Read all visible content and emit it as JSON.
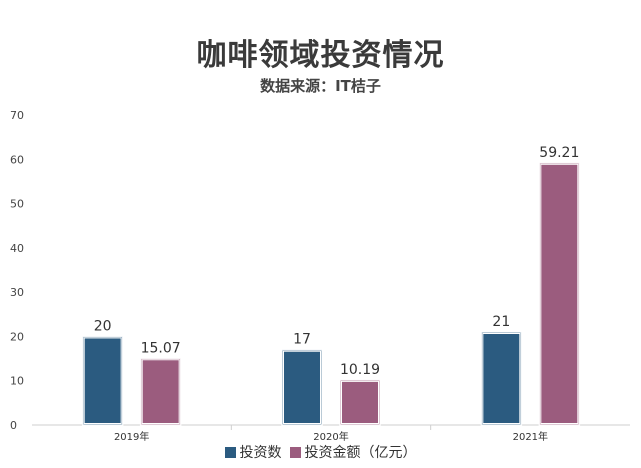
{
  "chart_data": {
    "type": "bar",
    "title": "咖啡领域投资情况",
    "subtitle": "数据来源：IT桔子",
    "categories": [
      "2019年",
      "2020年",
      "2021年"
    ],
    "series": [
      {
        "name": "投资数",
        "values": [
          20,
          17,
          21
        ],
        "labels": [
          "20",
          "17",
          "21"
        ],
        "color": "#2b5b80"
      },
      {
        "name": "投资金额（亿元）",
        "values": [
          15.07,
          10.19,
          59.21
        ],
        "labels": [
          "15.07",
          "10.19",
          "59.21"
        ],
        "color": "#9b5c7e"
      }
    ],
    "ylim": [
      0,
      70
    ],
    "yticks": [
      "0",
      "10",
      "20",
      "30",
      "40",
      "50",
      "60",
      "70"
    ],
    "grid": false,
    "legend": "bottom"
  }
}
